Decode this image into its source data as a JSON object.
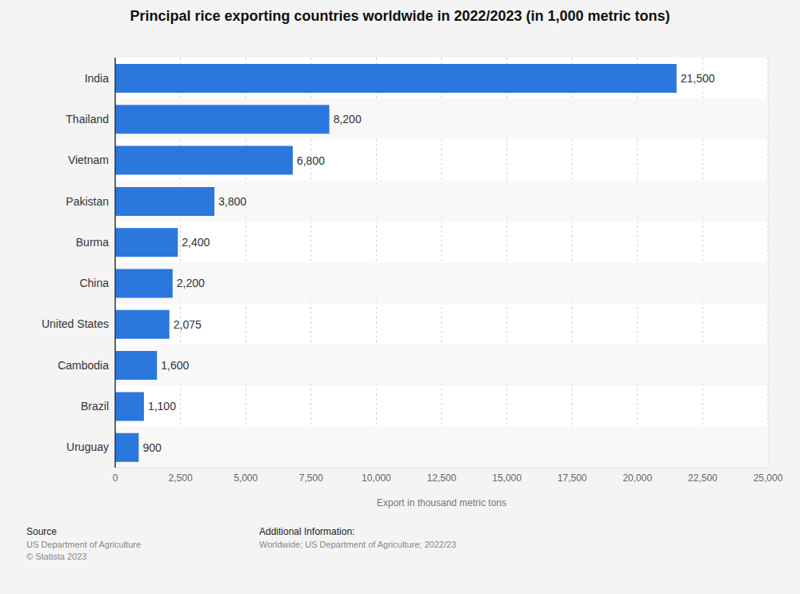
{
  "chart_data": {
    "type": "bar",
    "title": "Principal rice exporting countries worldwide in 2022/2023 (in 1,000 metric tons)",
    "orientation": "horizontal",
    "categories": [
      "India",
      "Thailand",
      "Vietnam",
      "Pakistan",
      "Burma",
      "China",
      "United States",
      "Cambodia",
      "Brazil",
      "Uruguay"
    ],
    "values": [
      21500,
      8200,
      6800,
      3800,
      2400,
      2200,
      2075,
      1600,
      1100,
      900
    ],
    "value_labels": [
      "21,500",
      "8,200",
      "6,800",
      "3,800",
      "2,400",
      "2,200",
      "2,075",
      "1,600",
      "1,100",
      "900"
    ],
    "data_labels": true,
    "color": "#2a77de",
    "x_label": "Export in thousand metric tons",
    "xlim": [
      0,
      25000
    ],
    "xticks": [
      0,
      {
        "value": 2500,
        "label": "2,500"
      },
      {
        "value": 5000,
        "label": "5,000"
      },
      {
        "value": 7500,
        "label": "7,500"
      },
      {
        "value": 10000,
        "label": "10,000"
      },
      {
        "value": 12500,
        "label": "12,500"
      },
      {
        "value": 15000,
        "label": "15,000"
      },
      {
        "value": 17500,
        "label": "17,500"
      },
      {
        "value": 20000,
        "label": "20,000"
      },
      {
        "value": 22500,
        "label": "22,500"
      },
      {
        "value": 25000,
        "label": "25,000"
      }
    ],
    "grid": true
  },
  "footer": {
    "source_title": "Source",
    "source_lines": [
      "US Department of Agriculture",
      "© Statista 2023"
    ],
    "info_title": "Additional Information:",
    "info_lines": [
      "Worldwide; US Department of Agriculture; 2022/23"
    ]
  }
}
